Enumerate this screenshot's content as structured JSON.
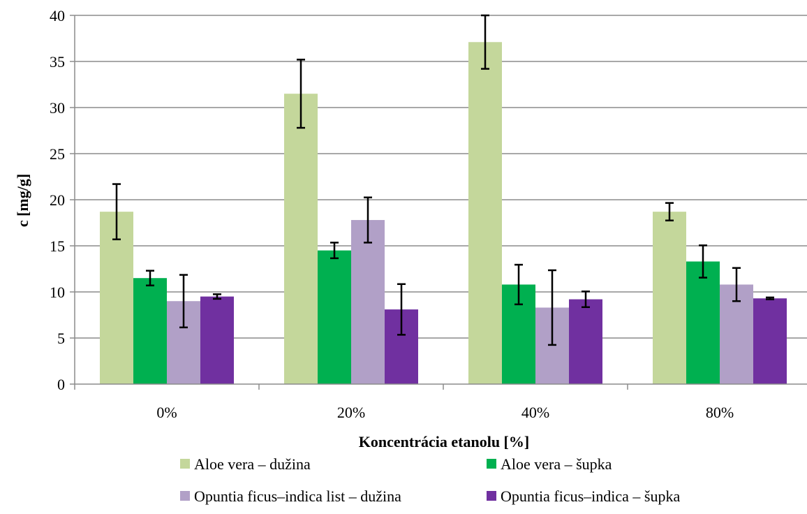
{
  "chart_data": {
    "type": "bar",
    "title": "",
    "xlabel": "Koncentrácia etanolu [%]",
    "ylabel": "c [mg/g]",
    "ylim": [
      0,
      40
    ],
    "yticks": [
      0,
      5,
      10,
      15,
      20,
      25,
      30,
      35,
      40
    ],
    "grid": true,
    "legend_position": "bottom",
    "categories": [
      "0%",
      "20%",
      "40%",
      "80%"
    ],
    "series": [
      {
        "name": "Aloe vera – dužina",
        "color": "#c4d79b",
        "values": [
          18.7,
          31.5,
          37.1,
          18.7
        ],
        "errors": [
          3.0,
          3.7,
          2.9,
          0.95
        ]
      },
      {
        "name": "Aloe vera – šupka",
        "color": "#00b050",
        "values": [
          11.5,
          14.5,
          10.8,
          13.3
        ],
        "errors": [
          0.8,
          0.85,
          2.15,
          1.75
        ]
      },
      {
        "name": "Opuntia ficus–indica list – dužina",
        "color": "#b1a0c7",
        "values": [
          9.0,
          17.8,
          8.3,
          10.8
        ],
        "errors": [
          2.85,
          2.45,
          4.05,
          1.8
        ]
      },
      {
        "name": "Opuntia ficus–indica – šupka",
        "color": "#7030a0",
        "values": [
          9.5,
          8.1,
          9.2,
          9.3
        ],
        "errors": [
          0.25,
          2.75,
          0.85,
          0.1
        ]
      }
    ]
  }
}
